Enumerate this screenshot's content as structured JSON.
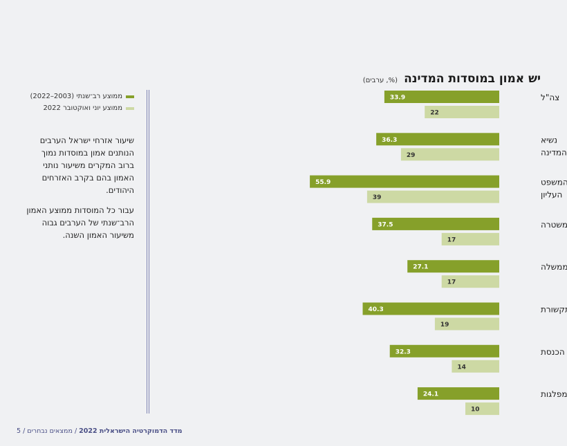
{
  "chart_data": {
    "type": "bar",
    "orientation": "horizontal",
    "title": "יש אמון במוסדות המדינה",
    "subtitle": "(%, ערבים)",
    "categories": [
      "צה\"ל",
      "נשיא המדינה",
      "בית המשפט העליון",
      "המשטרה",
      "הממשלה",
      "התקשורת",
      "הכנסת",
      "המפלגות"
    ],
    "category_lines": [
      [
        "צה\"ל"
      ],
      [
        "נשיא",
        "המדינה"
      ],
      [
        "בית המשפט",
        "העליון"
      ],
      [
        "המשטרה"
      ],
      [
        "הממשלה"
      ],
      [
        "התקשורת"
      ],
      [
        "הכנסת"
      ],
      [
        "המפלגות"
      ]
    ],
    "series": [
      {
        "name": "ממוצע רב־שנתי (2003–2022)",
        "color": "#86a02a",
        "values": [
          33.9,
          36.3,
          55.9,
          37.5,
          27.1,
          40.3,
          32.3,
          24.1
        ]
      },
      {
        "name": "ממוצע יוני ואוקטובר 2022",
        "color": "#cdd9a4",
        "values": [
          22,
          29,
          39,
          17,
          17,
          19,
          14,
          10
        ]
      }
    ],
    "xlim": [
      0,
      60
    ],
    "grid": false,
    "legend_position": "top-left"
  },
  "note": {
    "p1": "שיעור אזרחי ישראל הערבים הנותנים אמון במוסדות נמוך ברוב המקרים משיעור נותני האמון בהם בקרב האזרחים היהודים.",
    "p2": "עבור כל המוסדות ממוצע האמון הרב־שנתי של הערבים גבוה משיעור האמון השנה."
  },
  "footer": {
    "publication": "מדד הדמוקרטיה הישראלית 2022",
    "section": "/ ממצאים נבחרים / 5"
  }
}
